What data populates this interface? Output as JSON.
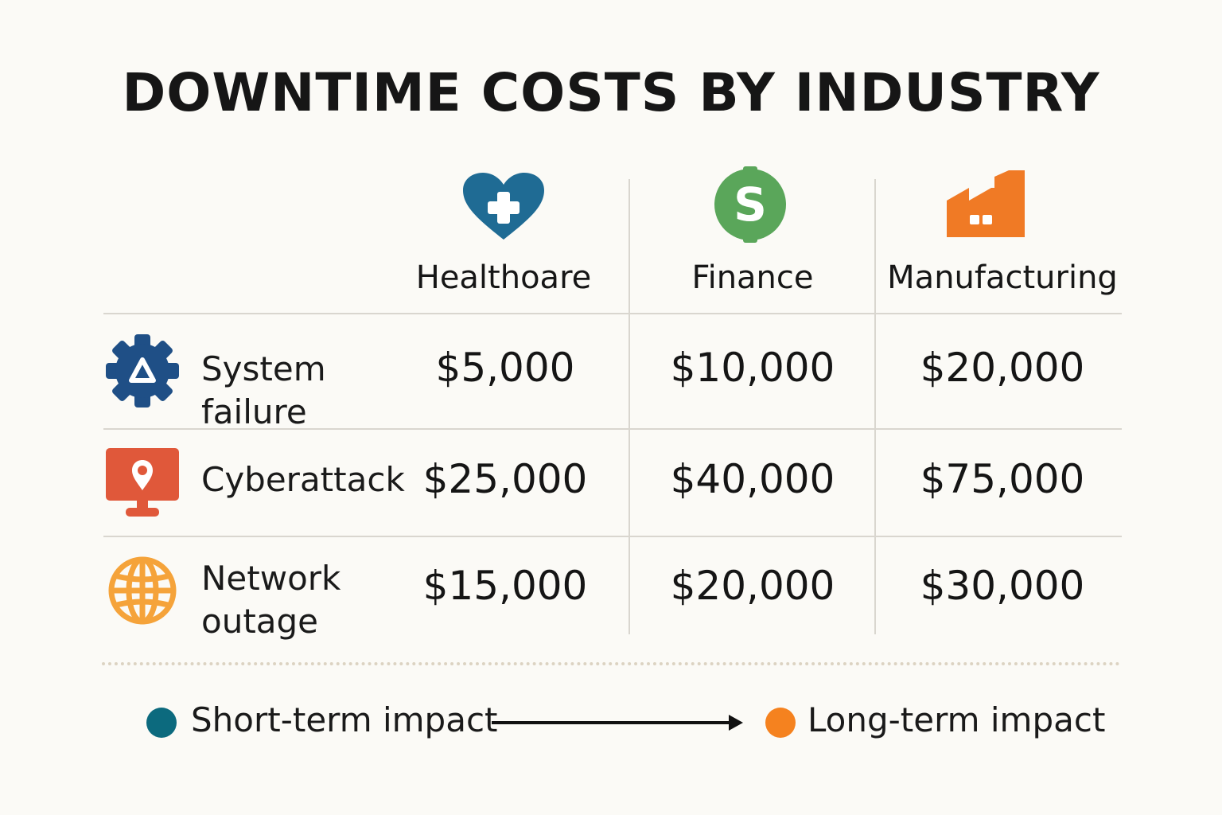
{
  "chart_data": {
    "type": "table",
    "title": "DOWNTIME COSTS BY INDUSTRY",
    "columns": [
      {
        "label": "Healthoare",
        "icon": "heart-plus-icon",
        "color": "#1f6b94"
      },
      {
        "label": "Finance",
        "icon": "dollar-coin-icon",
        "color": "#5aa65a"
      },
      {
        "label": "Manufacturing",
        "icon": "factory-icon",
        "color": "#f07a25"
      }
    ],
    "rows": [
      {
        "label_lines": [
          "System",
          "failure"
        ],
        "icon": "gear-alert-icon",
        "values": [
          "$5,000",
          "$10,000",
          "$20,000"
        ]
      },
      {
        "label_lines": [
          "Cyberattack"
        ],
        "icon": "monitor-pin-icon",
        "values": [
          "$25,000",
          "$40,000",
          "$75,000"
        ]
      },
      {
        "label_lines": [
          "Network",
          "outage"
        ],
        "icon": "globe-icon",
        "values": [
          "$15,000",
          "$20,000",
          "$30,000"
        ]
      }
    ],
    "legend": {
      "start": {
        "label": "Short-term impact",
        "color": "#0c6a7e"
      },
      "end": {
        "label": "Long-term impact",
        "color": "#f5821f"
      }
    }
  }
}
